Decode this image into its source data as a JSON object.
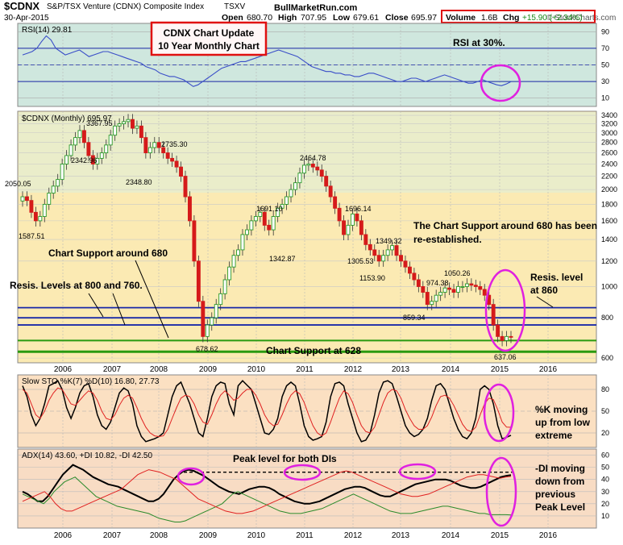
{
  "header": {
    "ticker": "$CDNX",
    "name": "S&P/TSX Venture (CDNX) Composite Index",
    "exchange": "TSXV",
    "date": "30-Apr-2015",
    "site": "BullMarketRun.com",
    "watermark": "© StockCharts.com",
    "open_label": "Open",
    "open": "680.70",
    "high_label": "High",
    "high": "707.95",
    "low_label": "Low",
    "low": "679.61",
    "close_label": "Close",
    "close": "695.97",
    "volume_label": "Volume",
    "volume": "1.6B",
    "chg_label": "Chg",
    "chg": "+15.90 (+2.34%)"
  },
  "title_box": {
    "line1": "CDNX Chart Update",
    "line2": "10 Year Monthly Chart"
  },
  "colors": {
    "rsi_bg": "#cfe7de",
    "price_bg": "#fbeab3",
    "price_bg_top": "#d9ecd8",
    "sto_bg": "#fbe0c2",
    "adx_bg": "#f8dcc4",
    "up": "#2a9a2a",
    "down": "#d51a1a",
    "annot": "#e020e0",
    "box": "#e01010",
    "resis": "#1a2aa8",
    "support": "#2a9a10",
    "rsi_line": "#3a4ec8"
  },
  "chart_data": [
    {
      "type": "line",
      "panel": "rsi",
      "label": "RSI(14) 29.81",
      "ticks": [
        10,
        30,
        50,
        70,
        90
      ],
      "ylim": [
        0,
        100
      ],
      "series": [
        {
          "name": "RSI(14)",
          "values": [
            62,
            64,
            66,
            70,
            78,
            85,
            80,
            70,
            66,
            62,
            64,
            66,
            68,
            64,
            60,
            62,
            64,
            66,
            66,
            64,
            62,
            60,
            58,
            56,
            54,
            52,
            48,
            46,
            44,
            40,
            38,
            36,
            36,
            34,
            32,
            28,
            24,
            26,
            30,
            34,
            38,
            42,
            46,
            48,
            50,
            52,
            54,
            54,
            56,
            58,
            60,
            62,
            64,
            66,
            68,
            66,
            64,
            62,
            60,
            56,
            52,
            48,
            46,
            44,
            42,
            42,
            40,
            40,
            38,
            38,
            36,
            36,
            38,
            40,
            40,
            38,
            36,
            34,
            32,
            30,
            30,
            32,
            34,
            34,
            32,
            30,
            32,
            34,
            36,
            38,
            36,
            34,
            32,
            30,
            28,
            28,
            30,
            32,
            30,
            28,
            26,
            25,
            27,
            29.81
          ]
        }
      ],
      "annotation": "RSI at 30%."
    },
    {
      "type": "candlestick",
      "panel": "price",
      "label": "$CDNX (Monthly) 695.97",
      "x_labels": [
        "2006",
        "2007",
        "2008",
        "2009",
        "2010",
        "2011",
        "2012",
        "2013",
        "2014",
        "2015",
        "2016"
      ],
      "y_ticks": [
        600,
        800,
        1000,
        1200,
        1400,
        1600,
        1800,
        2000,
        2200,
        2400,
        2600,
        2800,
        3000,
        3200,
        3400
      ],
      "log_scale": true,
      "ylim": [
        580,
        3500
      ],
      "closes": [
        1900,
        1850,
        1700,
        1600,
        1650,
        1800,
        1950,
        2050,
        2150,
        2400,
        2550,
        2750,
        2900,
        3050,
        2800,
        2550,
        2400,
        2500,
        2600,
        2750,
        2950,
        3150,
        3200,
        3250,
        3300,
        3100,
        3150,
        2900,
        2600,
        2700,
        2800,
        2700,
        2600,
        2500,
        2450,
        2350,
        2200,
        1900,
        1600,
        1200,
        900,
        700,
        760,
        800,
        880,
        950,
        1050,
        1150,
        1250,
        1300,
        1450,
        1500,
        1600,
        1650,
        1700,
        1550,
        1500,
        1650,
        1750,
        1800,
        1900,
        2000,
        2100,
        2250,
        2380,
        2400,
        2350,
        2300,
        2200,
        2050,
        1900,
        1750,
        1600,
        1450,
        1550,
        1680,
        1600,
        1450,
        1350,
        1300,
        1250,
        1200,
        1250,
        1300,
        1340,
        1250,
        1200,
        1150,
        1100,
        1050,
        1000,
        960,
        880,
        900,
        940,
        960,
        990,
        980,
        960,
        1000,
        1000,
        1020,
        1010,
        1000,
        980,
        940,
        880,
        760,
        700,
        680,
        700,
        695.97
      ],
      "price_labels": [
        "3367.95",
        "2342.96",
        "2348.80",
        "2735.30",
        "2050.05",
        "1587.51",
        "678.62",
        "1691.10",
        "1342.87",
        "2464.78",
        "1696.14",
        "1305.53",
        "1349.32",
        "1153.90",
        "974.38",
        "1050.26",
        "859.34",
        "637.06"
      ],
      "resistance": [
        860,
        800,
        760
      ],
      "support": [
        680,
        628
      ],
      "annotations": [
        "The Chart Support around 680 has been re-established.",
        "Chart Support around 680",
        "Resis. Levels at 800 and 760.",
        "Resis. level at 860",
        "Chart Support at 628"
      ]
    },
    {
      "type": "line",
      "panel": "stochastic",
      "label": "Slow STO %K(7) %D(10) 16.80, 27.73",
      "ticks": [
        20,
        50,
        80
      ],
      "ylim": [
        0,
        100
      ],
      "series": [
        {
          "name": "%K(7)",
          "values": [
            85,
            70,
            45,
            30,
            40,
            60,
            85,
            88,
            92,
            80,
            55,
            40,
            55,
            75,
            85,
            88,
            70,
            45,
            30,
            25,
            35,
            55,
            75,
            82,
            78,
            60,
            30,
            15,
            8,
            10,
            12,
            15,
            20,
            45,
            70,
            85,
            90,
            75,
            60,
            40,
            20,
            15,
            40,
            70,
            85,
            90,
            88,
            60,
            45,
            85,
            92,
            86,
            80,
            60,
            40,
            20,
            18,
            25,
            40,
            70,
            85,
            90,
            85,
            60,
            30,
            15,
            10,
            12,
            15,
            35,
            70,
            88,
            90,
            85,
            60,
            40,
            20,
            8,
            10,
            20,
            45,
            75,
            90,
            92,
            88,
            70,
            50,
            30,
            20,
            15,
            18,
            25,
            40,
            65,
            85,
            88,
            80,
            60,
            40,
            25,
            15,
            12,
            20,
            40,
            80,
            85,
            80,
            60,
            30,
            12,
            14,
            16.8
          ]
        },
        {
          "name": "%D(10)",
          "values": [
            80,
            75,
            60,
            45,
            40,
            50,
            65,
            75,
            82,
            80,
            70,
            60,
            58,
            65,
            72,
            78,
            75,
            65,
            50,
            40,
            38,
            45,
            58,
            68,
            72,
            68,
            55,
            40,
            28,
            20,
            16,
            15,
            16,
            25,
            40,
            55,
            68,
            72,
            70,
            60,
            45,
            35,
            32,
            45,
            60,
            72,
            78,
            72,
            65,
            68,
            75,
            80,
            80,
            72,
            60,
            45,
            35,
            30,
            32,
            45,
            60,
            72,
            78,
            74,
            62,
            45,
            30,
            20,
            16,
            20,
            35,
            52,
            68,
            78,
            74,
            62,
            45,
            30,
            22,
            20,
            28,
            45,
            62,
            75,
            80,
            78,
            68,
            52,
            40,
            30,
            25,
            25,
            30,
            42,
            58,
            70,
            72,
            68,
            58,
            45,
            32,
            24,
            22,
            28,
            45,
            60,
            68,
            66,
            52,
            35,
            28,
            27.73
          ]
        }
      ],
      "annotation": "%K moving up from low extreme"
    },
    {
      "type": "line",
      "panel": "adx",
      "label": "ADX(14) 43.60, +DI 10.82, -DI 42.50",
      "ticks": [
        10,
        20,
        30,
        40,
        50,
        60
      ],
      "ylim": [
        0,
        65
      ],
      "series": [
        {
          "name": "ADX(14)",
          "values": [
            30,
            28,
            25,
            22,
            22,
            26,
            32,
            38,
            44,
            48,
            52,
            50,
            48,
            45,
            42,
            40,
            38,
            36,
            35,
            34,
            32,
            30,
            28,
            26,
            24,
            22,
            22,
            24,
            28,
            34,
            40,
            44,
            47,
            48,
            47,
            45,
            43,
            40,
            37,
            34,
            32,
            30,
            29,
            28,
            30,
            32,
            33,
            34,
            34,
            33,
            31,
            28,
            26,
            24,
            22,
            21,
            20,
            20,
            21,
            22,
            24,
            26,
            28,
            30,
            32,
            33,
            34,
            34,
            33,
            31,
            29,
            27,
            26,
            26,
            28,
            30,
            32,
            34,
            36,
            37,
            38,
            39,
            40,
            40,
            40,
            39,
            37,
            35,
            34,
            33,
            33,
            34,
            36,
            38,
            40,
            42,
            43,
            43.6
          ]
        },
        {
          "name": "+DI",
          "values": [
            28,
            26,
            24,
            22,
            20,
            24,
            30,
            34,
            38,
            40,
            42,
            38,
            34,
            30,
            26,
            24,
            22,
            20,
            18,
            17,
            16,
            15,
            14,
            13,
            12,
            10,
            8,
            7,
            6,
            5,
            5,
            6,
            8,
            10,
            12,
            14,
            16,
            18,
            20,
            24,
            28,
            30,
            28,
            26,
            24,
            22,
            20,
            18,
            16,
            14,
            13,
            12,
            12,
            12,
            13,
            14,
            15,
            16,
            18,
            20,
            22,
            24,
            26,
            28,
            26,
            24,
            22,
            20,
            18,
            16,
            14,
            13,
            12,
            12,
            12,
            13,
            14,
            15,
            16,
            17,
            18,
            18,
            17,
            16,
            15,
            14,
            13,
            12,
            12,
            11,
            11,
            11,
            11,
            10.82
          ]
        },
        {
          "name": "-DI",
          "values": [
            22,
            24,
            26,
            28,
            30,
            26,
            20,
            16,
            14,
            14,
            16,
            18,
            20,
            22,
            24,
            26,
            28,
            30,
            32,
            36,
            40,
            44,
            46,
            48,
            47,
            46,
            44,
            42,
            40,
            36,
            32,
            28,
            24,
            22,
            20,
            18,
            16,
            14,
            13,
            12,
            12,
            13,
            14,
            16,
            18,
            20,
            22,
            24,
            26,
            28,
            30,
            32,
            34,
            36,
            38,
            40,
            42,
            44,
            46,
            47,
            46,
            44,
            42,
            40,
            38,
            36,
            34,
            32,
            30,
            28,
            27,
            26,
            26,
            27,
            28,
            30,
            32,
            34,
            36,
            38,
            40,
            42,
            43,
            44,
            44,
            43,
            42,
            41,
            42,
            42.5
          ]
        }
      ],
      "peak_line": 46,
      "annotations": [
        "Peak level for both DIs",
        "-DI moving down from previous Peak Level"
      ]
    }
  ]
}
